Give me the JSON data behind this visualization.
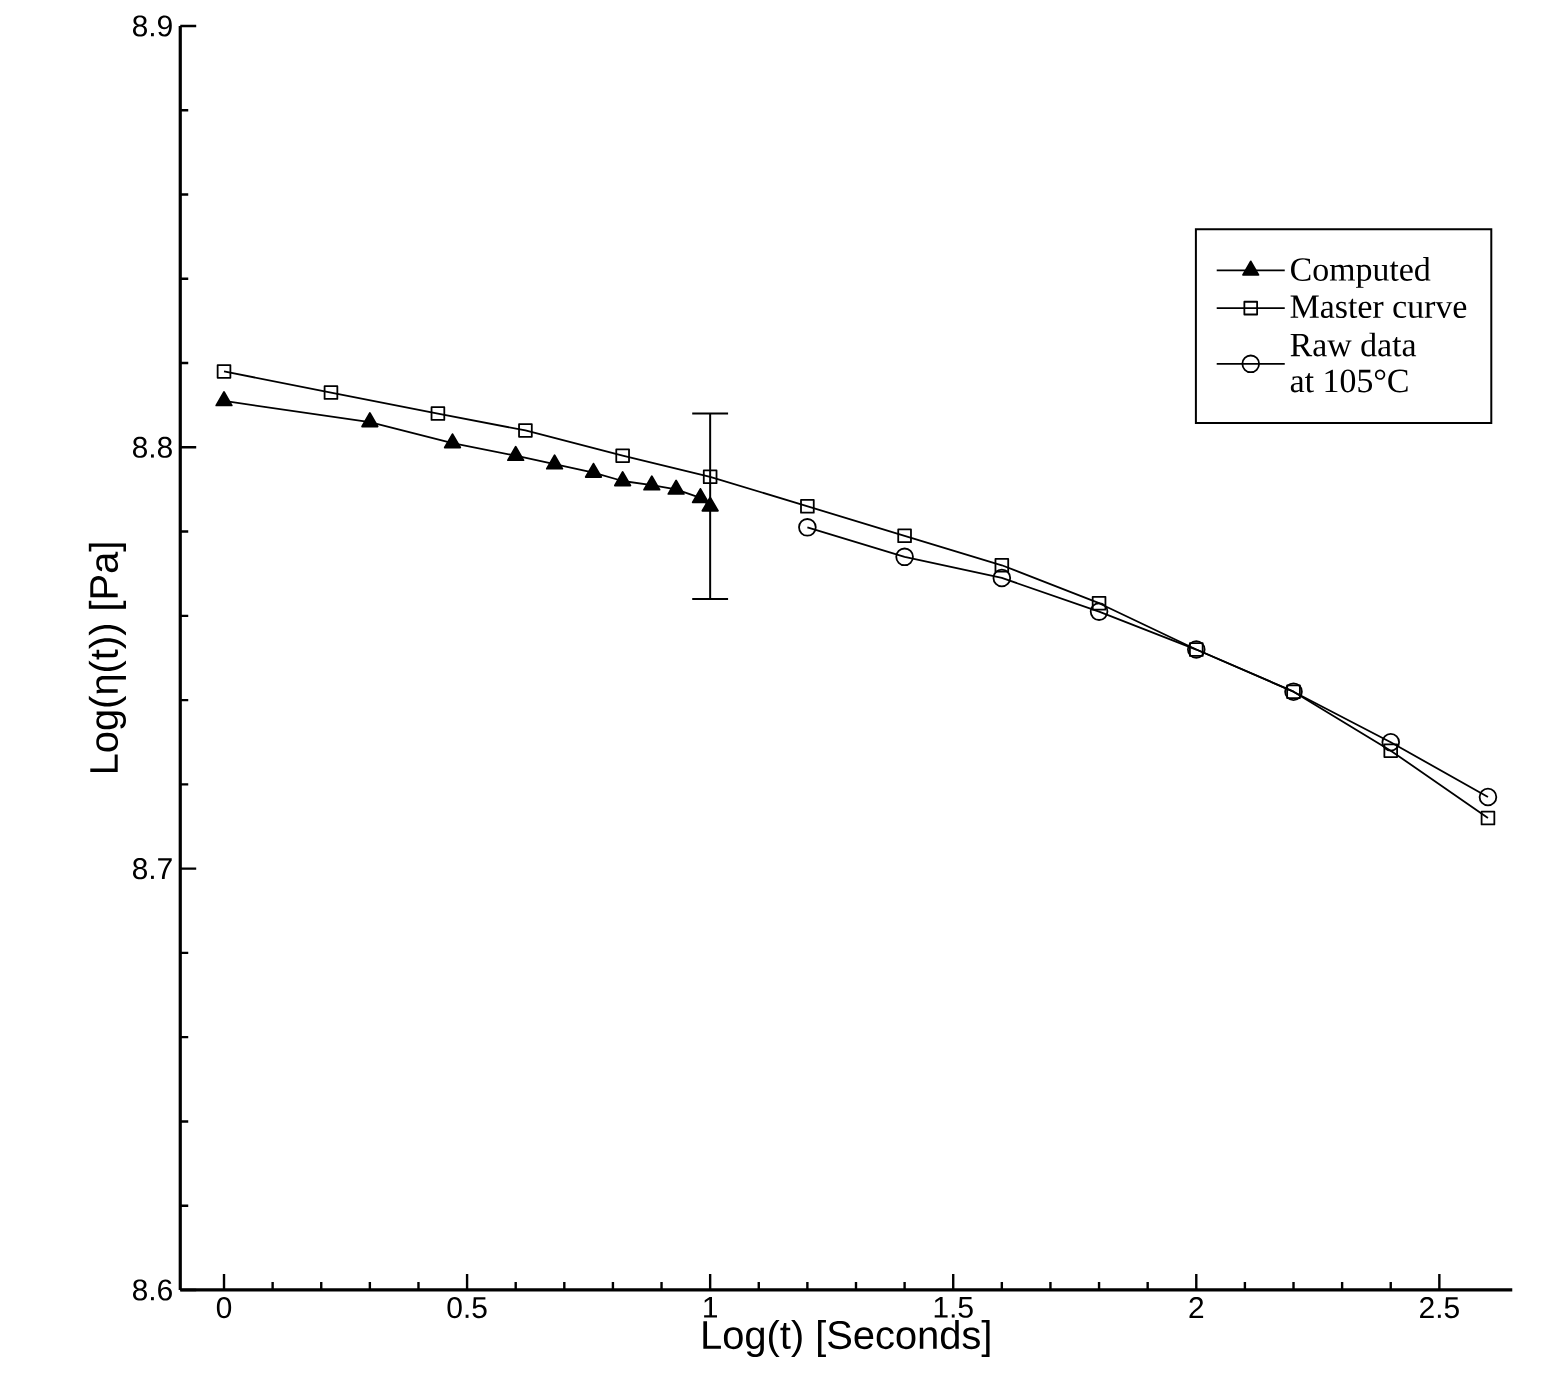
{
  "chart_data": {
    "type": "line",
    "xlabel": "Log(t) [Seconds]",
    "ylabel": "Log(η(t)) [Pa]",
    "xlim": [
      -0.09,
      2.65
    ],
    "ylim": [
      8.6,
      8.9
    ],
    "xticks": [
      0,
      0.5,
      1,
      1.5,
      2,
      2.5
    ],
    "yticks": [
      8.6,
      8.7,
      8.8,
      8.9
    ],
    "legend": "top right",
    "line_style": "solid",
    "series": [
      {
        "name": "Computed",
        "color": "#000000",
        "marker": "triangle",
        "x": [
          0,
          0.3,
          0.47,
          0.6,
          0.68,
          0.76,
          0.82,
          0.88,
          0.93,
          0.98,
          1.0
        ],
        "values": [
          8.811,
          8.806,
          8.801,
          8.798,
          8.796,
          8.794,
          8.792,
          8.791,
          8.79,
          8.788,
          8.786
        ],
        "errors": [
          null,
          null,
          null,
          null,
          null,
          null,
          null,
          null,
          null,
          null,
          0.022
        ]
      },
      {
        "name": "Master curve",
        "color": "#000000",
        "marker": "square",
        "x": [
          0,
          0.22,
          0.44,
          0.62,
          0.82,
          1.0,
          1.2,
          1.4,
          1.6,
          1.8,
          2.0,
          2.2,
          2.4,
          2.6
        ],
        "values": [
          8.818,
          8.813,
          8.808,
          8.804,
          8.798,
          8.793,
          8.786,
          8.779,
          8.772,
          8.763,
          8.752,
          8.742,
          8.728,
          8.712
        ]
      },
      {
        "name": "Raw data\nat 105°C",
        "color": "#000000",
        "marker": "circle",
        "x": [
          1.2,
          1.4,
          1.6,
          1.8,
          2.0,
          2.2,
          2.4,
          2.6
        ],
        "values": [
          8.781,
          8.774,
          8.769,
          8.761,
          8.752,
          8.742,
          8.73,
          8.717
        ]
      }
    ]
  }
}
